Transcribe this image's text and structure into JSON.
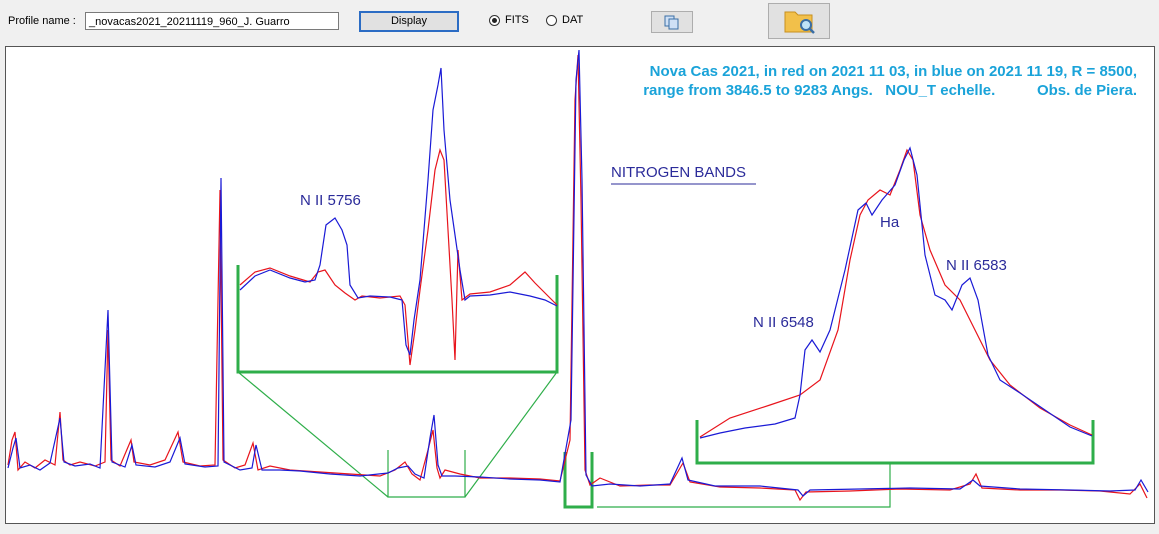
{
  "toolbar": {
    "profile_label": "Profile name :",
    "profile_value": "_novacas2021_20211119_960_J. Guarro",
    "display_button": "Display",
    "formats": [
      {
        "label": "FITS",
        "selected": true
      },
      {
        "label": "DAT",
        "selected": false
      }
    ]
  },
  "plot": {
    "caption": [
      "Nova Cas 2021, in red on 2021 11 03, in blue on 2021 11 19, R = 8500,",
      "range from 3846.5 to 9283 Angs.   NOU_T echelle.          Obs. de Piera."
    ],
    "heading": "NITROGEN BANDS",
    "labels": [
      "N II  5756",
      "Ha",
      "N II 6583",
      "N II  6548"
    ]
  }
}
